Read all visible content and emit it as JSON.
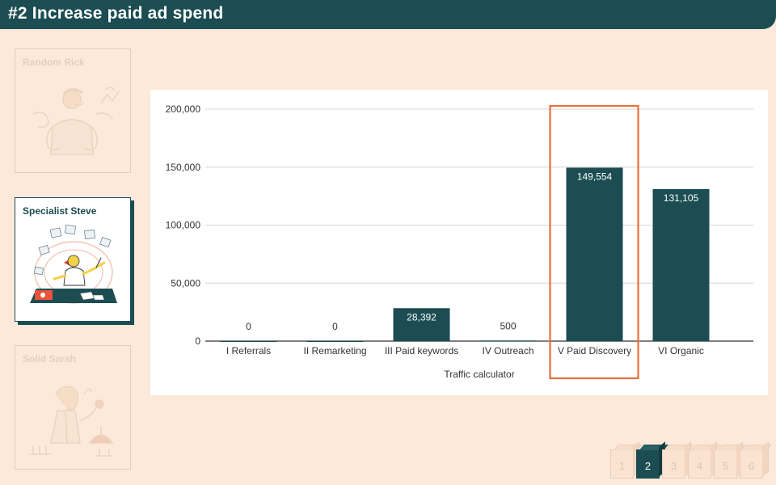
{
  "header": {
    "title": "#2 Increase paid ad spend"
  },
  "personas": [
    {
      "name": "Random Rick",
      "state": "faded"
    },
    {
      "name": "Specialist Steve",
      "state": "active"
    },
    {
      "name": "Solid Sarah",
      "state": "faded"
    }
  ],
  "colors": {
    "brand": "#1b4d52",
    "background": "#fde9d9",
    "highlight": "#e8703a",
    "card": "#ffffff"
  },
  "chart_data": {
    "type": "bar",
    "categories": [
      "I Referrals",
      "II Remarketing",
      "III Paid keywords",
      "IV Outreach",
      "V Paid Discovery",
      "VI Organic"
    ],
    "values": [
      0,
      0,
      28392,
      500,
      149554,
      131105
    ],
    "value_labels": [
      "0",
      "0",
      "28,392",
      "500",
      "149,554",
      "131,105"
    ],
    "xlabel": "Traffic calculator",
    "ylabel": "",
    "ylim": [
      0,
      200000
    ],
    "yticks": [
      0,
      50000,
      100000,
      150000,
      200000
    ],
    "ytick_labels": [
      "0",
      "50,000",
      "100,000",
      "150,000",
      "200,000"
    ],
    "grid": true,
    "bar_color": "#1b4d52",
    "highlighted_category": "V Paid Discovery"
  },
  "pagination": {
    "pages": [
      "1",
      "2",
      "3",
      "4",
      "5",
      "6"
    ],
    "current": "2"
  }
}
